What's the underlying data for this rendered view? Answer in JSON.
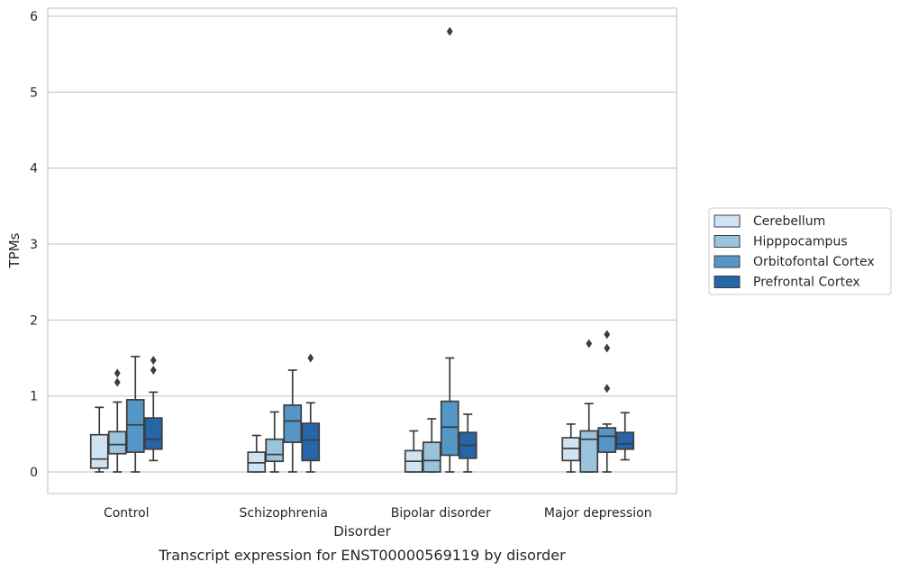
{
  "caption": "Transcript expression for ENST00000569119 by disorder",
  "chart_data": {
    "type": "boxplot",
    "xlabel": "Disorder",
    "ylabel": "TPMs",
    "ylim": [
      -0.28,
      6.1
    ],
    "yticks": [
      0,
      1,
      2,
      3,
      4,
      5,
      6
    ],
    "grid": "horizontal",
    "legend_placement": "right",
    "categories": [
      "Control",
      "Schizophrenia",
      "Bipolar disorder",
      "Major depression"
    ],
    "series": [
      {
        "name": "Cerebellum",
        "color": "#d1e2f2",
        "boxes": [
          {
            "whislo": 0.0,
            "q1": 0.05,
            "med": 0.17,
            "q3": 0.49,
            "whishi": 0.85,
            "fliers": []
          },
          {
            "whislo": 0.0,
            "q1": 0.0,
            "med": 0.12,
            "q3": 0.26,
            "whishi": 0.48,
            "fliers": []
          },
          {
            "whislo": 0.0,
            "q1": 0.0,
            "med": 0.14,
            "q3": 0.28,
            "whishi": 0.54,
            "fliers": []
          },
          {
            "whislo": 0.0,
            "q1": 0.15,
            "med": 0.31,
            "q3": 0.45,
            "whishi": 0.63,
            "fliers": []
          }
        ]
      },
      {
        "name": "Hipppocampus",
        "color": "#9ac3de",
        "boxes": [
          {
            "whislo": 0.0,
            "q1": 0.24,
            "med": 0.36,
            "q3": 0.53,
            "whishi": 0.92,
            "fliers": [
              1.18,
              1.3
            ]
          },
          {
            "whislo": 0.0,
            "q1": 0.14,
            "med": 0.23,
            "q3": 0.43,
            "whishi": 0.79,
            "fliers": []
          },
          {
            "whislo": 0.0,
            "q1": 0.0,
            "med": 0.15,
            "q3": 0.39,
            "whishi": 0.7,
            "fliers": []
          },
          {
            "whislo": 0.0,
            "q1": 0.0,
            "med": 0.43,
            "q3": 0.54,
            "whishi": 0.9,
            "fliers": [
              1.69
            ]
          }
        ]
      },
      {
        "name": "Orbitofontal Cortex",
        "color": "#5497c7",
        "boxes": [
          {
            "whislo": 0.0,
            "q1": 0.26,
            "med": 0.62,
            "q3": 0.95,
            "whishi": 1.52,
            "fliers": []
          },
          {
            "whislo": 0.0,
            "q1": 0.39,
            "med": 0.67,
            "q3": 0.88,
            "whishi": 1.34,
            "fliers": []
          },
          {
            "whislo": 0.0,
            "q1": 0.22,
            "med": 0.59,
            "q3": 0.93,
            "whishi": 1.5,
            "fliers": [
              5.8
            ]
          },
          {
            "whislo": 0.0,
            "q1": 0.26,
            "med": 0.47,
            "q3": 0.58,
            "whishi": 0.63,
            "fliers": [
              1.1,
              1.63,
              1.81
            ]
          }
        ]
      },
      {
        "name": "Prefrontal Cortex",
        "color": "#2565a8",
        "boxes": [
          {
            "whislo": 0.15,
            "q1": 0.3,
            "med": 0.43,
            "q3": 0.71,
            "whishi": 1.05,
            "fliers": [
              1.34,
              1.47
            ]
          },
          {
            "whislo": 0.0,
            "q1": 0.15,
            "med": 0.42,
            "q3": 0.64,
            "whishi": 0.91,
            "fliers": [
              1.5
            ]
          },
          {
            "whislo": 0.0,
            "q1": 0.18,
            "med": 0.35,
            "q3": 0.52,
            "whishi": 0.76,
            "fliers": []
          },
          {
            "whislo": 0.16,
            "q1": 0.3,
            "med": 0.37,
            "q3": 0.52,
            "whishi": 0.78,
            "fliers": []
          }
        ]
      }
    ]
  }
}
